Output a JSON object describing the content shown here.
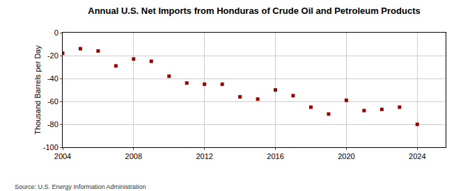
{
  "chart_data": {
    "type": "scatter",
    "title": "Annual U.S. Net Imports from Honduras of Crude Oil and Petroleum Products",
    "y_label": "Thousand Barrels per Day",
    "annotations": [
      "Source: U.S. Energy Information Administration"
    ],
    "x": [
      2004,
      2005,
      2006,
      2007,
      2008,
      2009,
      2010,
      2011,
      2012,
      2013,
      2014,
      2015,
      2016,
      2017,
      2018,
      2019,
      2020,
      2021,
      2022,
      2023,
      2024
    ],
    "values": [
      -18,
      -14,
      -16,
      -29,
      -23,
      -25,
      -38,
      -44,
      -45,
      -45,
      -56,
      -58,
      -50,
      -55,
      -65,
      -71,
      -59,
      -68,
      -67,
      -65,
      -80
    ],
    "color": "#990000",
    "marker": "square",
    "xlim": [
      2004,
      2025.6
    ],
    "xticks": [
      2004,
      2008,
      2012,
      2016,
      2020,
      2024
    ],
    "ylim": [
      -100,
      0
    ],
    "yticks": [
      -100,
      -80,
      -60,
      -40,
      -20,
      0
    ],
    "grid": true
  }
}
